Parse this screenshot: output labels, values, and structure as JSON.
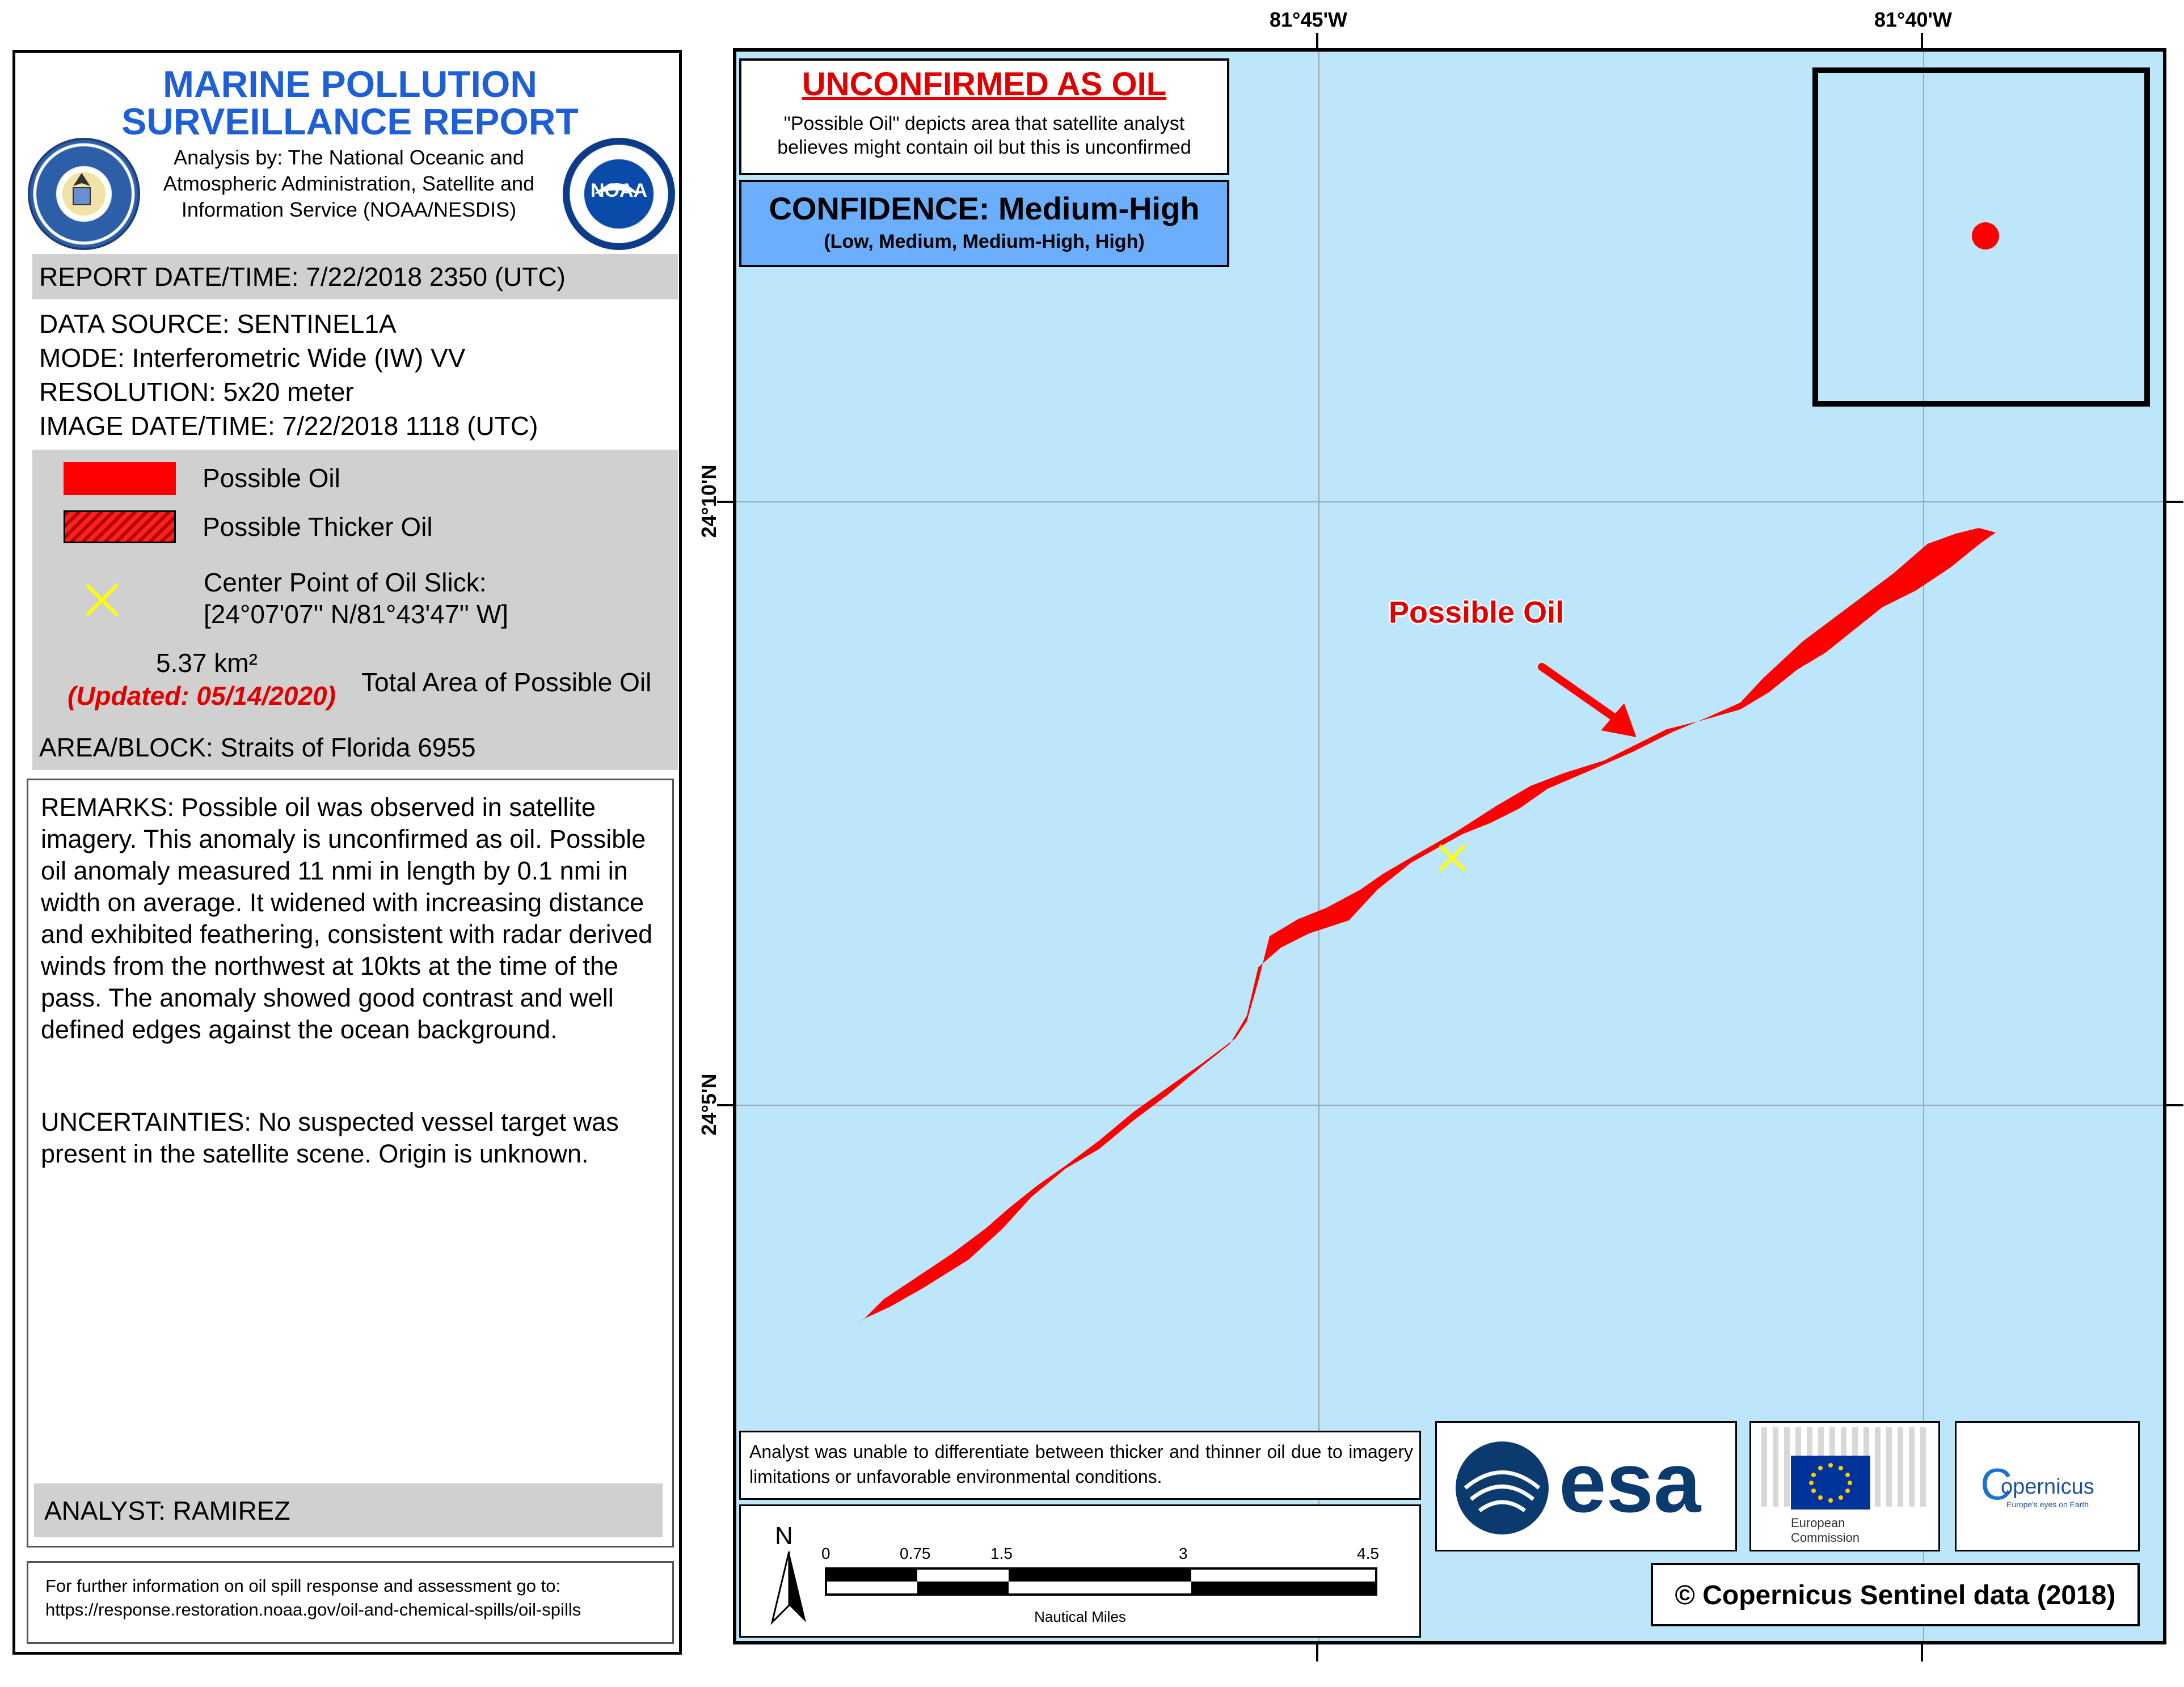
{
  "report": {
    "title_line1": "MARINE POLLUTION",
    "title_line2": "SURVEILLANCE REPORT",
    "analysis_by": "Analysis by: The National Oceanic and Atmospheric Administration, Satellite and Information Service (NOAA/NESDIS)",
    "noaa_seal_text": "NOAA",
    "report_datetime": "REPORT DATE/TIME: 7/22/2018 2350 (UTC)",
    "data_source": "DATA SOURCE: SENTINEL1A",
    "mode": "MODE: Interferometric Wide (IW) VV",
    "resolution": "RESOLUTION: 5x20 meter",
    "image_datetime": "IMAGE DATE/TIME: 7/22/2018 1118 (UTC)",
    "area_block": "AREA/BLOCK: Straits of Florida  6955",
    "remarks": "REMARKS: Possible oil was observed in satellite imagery. This anomaly is unconfirmed as oil. Possible oil anomaly measured 11 nmi in length by 0.1 nmi in width on average. It widened with increasing distance and exhibited feathering, consistent with radar derived winds from the northwest at 10kts at the time of the pass. The anomaly showed good contrast and well defined edges against the ocean background.",
    "uncertainties": "UNCERTAINTIES: No suspected vessel target was present in the satellite scene. Origin is unknown.",
    "analyst": "ANALYST: RAMIREZ",
    "further_info_line1": "For further information on oil spill response and assessment go to:",
    "further_info_line2": "https://response.restoration.noaa.gov/oil-and-chemical-spills/oil-spills"
  },
  "legend": {
    "possible_oil": "Possible Oil",
    "possible_thicker_oil": "Possible Thicker Oil",
    "center_point_label": "Center Point of Oil Slick:",
    "center_point_value": "[24°07'07'' N/81°43'47'' W]",
    "area_value": "5.37 km²",
    "area_updated": "(Updated: 05/14/2020)",
    "area_label": "Total Area of Possible Oil",
    "oil_color": "#ff0000",
    "center_marker_color": "#ffff00"
  },
  "map": {
    "unconfirmed_title": "UNCONFIRMED AS OIL",
    "unconfirmed_line1": "\"Possible Oil\" depicts area that satellite analyst",
    "unconfirmed_line2": "believes might contain oil but this is unconfirmed",
    "confidence_title": "CONFIDENCE: Medium-High",
    "confidence_scale": "(Low, Medium, Medium-High, High)",
    "confidence_color": "#6aaefc",
    "water_color": "#bde6fb",
    "possible_oil_annotation": "Possible Oil",
    "lon_labels": [
      "81°45'W",
      "81°40'W"
    ],
    "lat_labels": [
      "24°10'N",
      "24°5'N"
    ],
    "analyst_note": "Analyst was unable to differentiate between thicker and thinner oil due to imagery limitations or unfavorable environmental conditions.",
    "north_label": "N",
    "scale_ticks": [
      "0",
      "0.75",
      "1.5",
      "3",
      "4.5"
    ],
    "scale_unit": "Nautical Miles",
    "copyright": "© Copernicus Sentinel data (2018)",
    "esa_logo_text": "esa",
    "eu_logo_text1": "European",
    "eu_logo_text2": "Commission",
    "copernicus_logo_text": "opernicus",
    "copernicus_logo_c": "C",
    "copernicus_tagline": "Europe's eyes on Earth"
  }
}
